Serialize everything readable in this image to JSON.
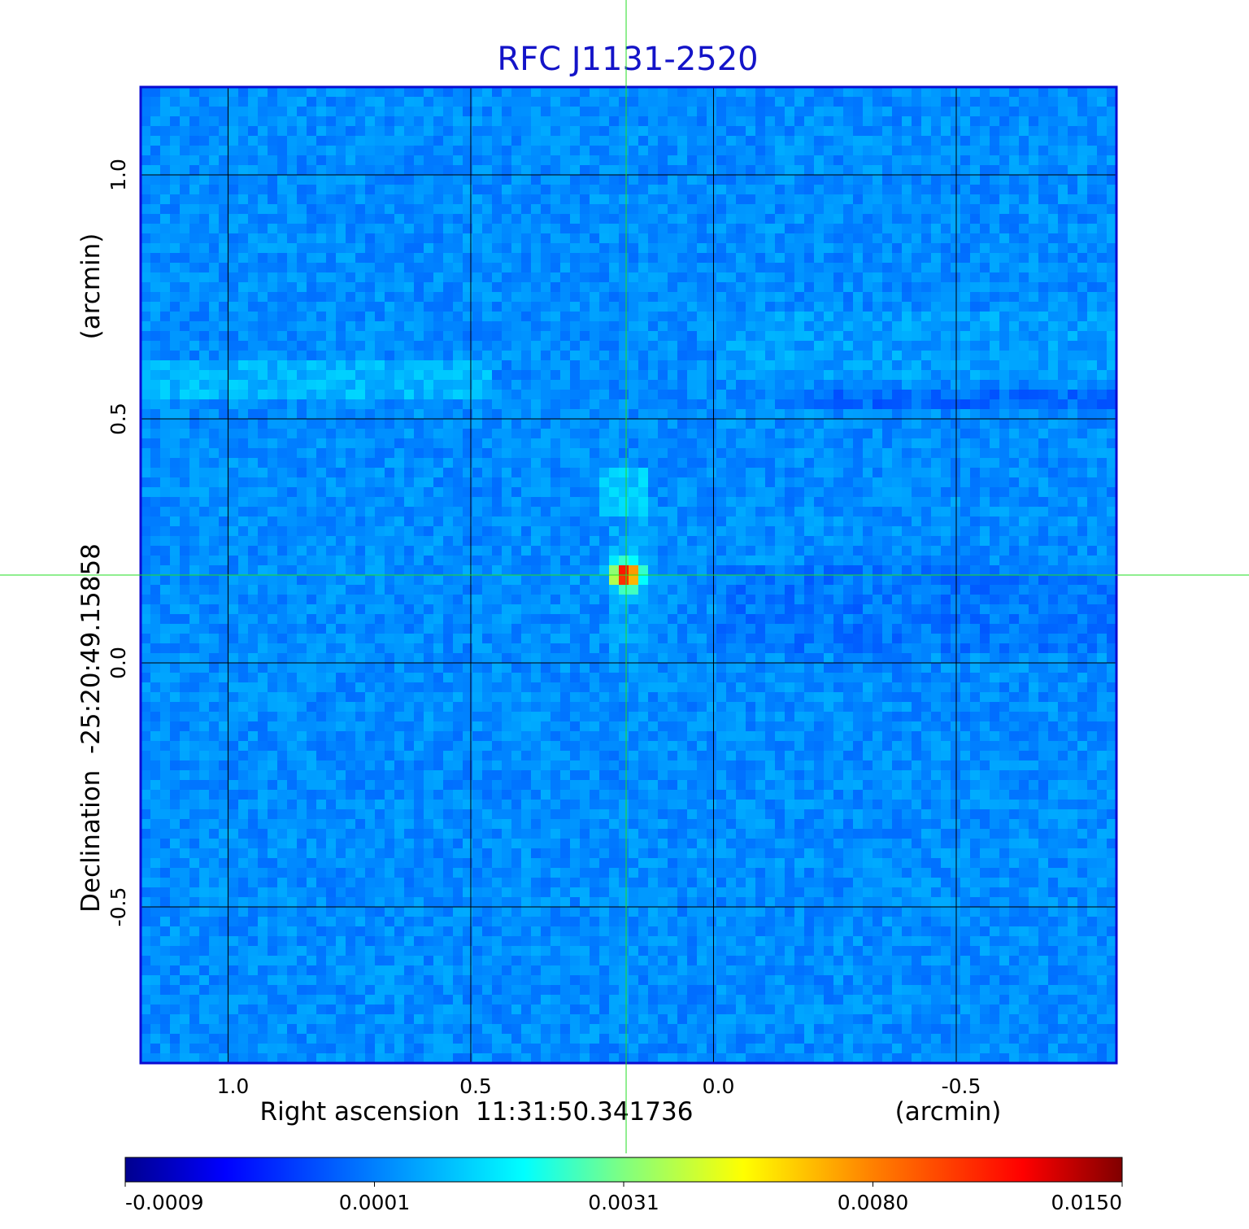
{
  "chart_data": {
    "type": "heatmap",
    "title": "RFC J1131-2520",
    "xlabel": "Right ascension  11:31:50.341736",
    "xunit": "(arcmin)",
    "ylabel": "Declination  -25:20:49.15858",
    "yunit": "(arcmin)",
    "xlim": [
      1.18,
      -0.83
    ],
    "ylim": [
      -0.82,
      1.18
    ],
    "x_ticks": [
      {
        "value": 1.0,
        "label": "1.0"
      },
      {
        "value": 0.5,
        "label": "0.5"
      },
      {
        "value": 0.0,
        "label": "0.0"
      },
      {
        "value": -0.5,
        "label": "-0.5"
      }
    ],
    "y_ticks": [
      {
        "value": 1.0,
        "label": "1.0"
      },
      {
        "value": 0.5,
        "label": "0.5"
      },
      {
        "value": 0.0,
        "label": "0.0"
      },
      {
        "value": -0.5,
        "label": "-0.5"
      }
    ],
    "grid": true,
    "source_peak": {
      "x": 0.18,
      "y": 0.18,
      "value": 0.015
    },
    "crosshair": {
      "x": 0.18,
      "y": 0.18
    },
    "colorbar": {
      "orientation": "horizontal",
      "placement": "bottom",
      "colormap": "jet",
      "ticks": [
        {
          "value": -0.0009,
          "label": "-0.0009"
        },
        {
          "value": 0.0001,
          "label": "0.0001"
        },
        {
          "value": 0.0031,
          "label": "0.0031"
        },
        {
          "value": 0.008,
          "label": "0.0080"
        },
        {
          "value": 0.015,
          "label": "0.0150"
        }
      ]
    },
    "colors": {
      "title": "#1414c8",
      "frame": "#0a0ad2",
      "crosshair": "#22dd22",
      "grid": "#000000"
    }
  }
}
